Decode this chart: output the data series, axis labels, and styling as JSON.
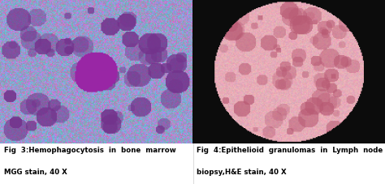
{
  "background_color": "#ffffff",
  "fig_width": 4.74,
  "fig_height": 2.27,
  "left_image": {
    "caption_line1": "Fig  3:Hemophagocytosis  in  bone  marrow",
    "caption_line2": "MGG stain, 40 X"
  },
  "right_image": {
    "caption_line1": "Fig  4:Epithelioid  granulomas  in  Lymph  node",
    "caption_line2": "biopsy,H&E stain, 40 X"
  },
  "caption_fontsize": 6.2,
  "caption_color": "#000000",
  "divider_color": "#cccccc"
}
